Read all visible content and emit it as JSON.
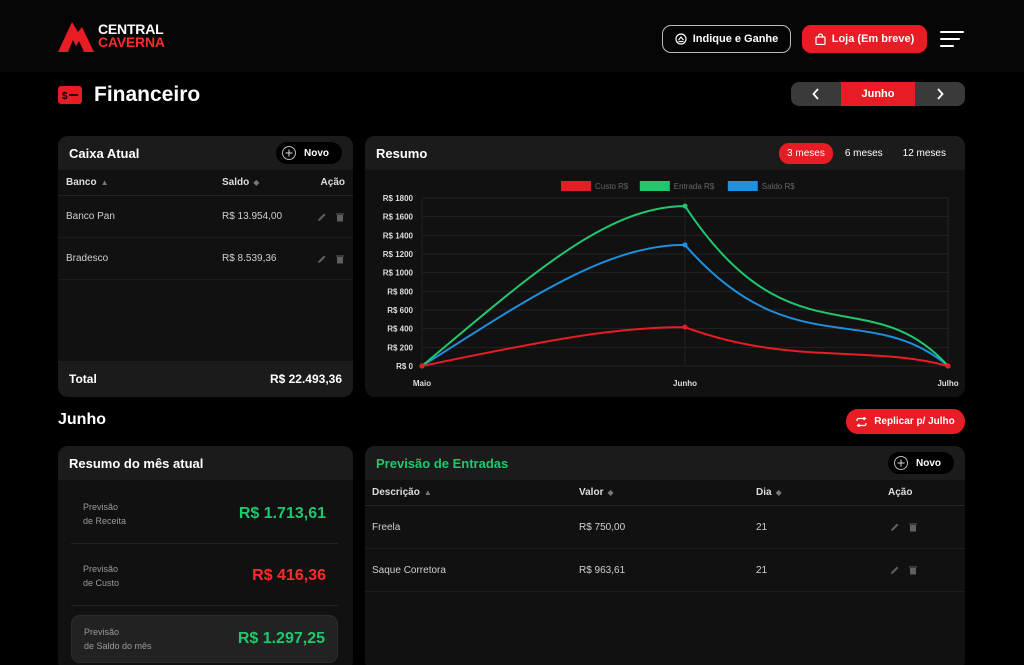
{
  "header": {
    "logo_line1": "CENTRAL",
    "logo_line2": "CAVERNA",
    "indique_label": "Indique e Ganhe",
    "loja_label": "Loja (Em breve)"
  },
  "page": {
    "title": "Financeiro",
    "month_current": "Junho"
  },
  "caixa": {
    "title": "Caixa Atual",
    "novo_label": "Novo",
    "columns": [
      "Banco",
      "Saldo",
      "Ação"
    ],
    "rows": [
      {
        "banco": "Banco Pan",
        "saldo": "R$ 13.954,00"
      },
      {
        "banco": "Bradesco",
        "saldo": "R$ 8.539,36"
      }
    ],
    "total_label": "Total",
    "total_value": "R$ 22.493,36"
  },
  "resumo": {
    "title": "Resumo",
    "tabs": [
      "3 meses",
      "6 meses",
      "12 meses"
    ],
    "active_tab": "3 meses"
  },
  "chart_data": {
    "type": "line",
    "categories": [
      "Maio",
      "Junho",
      "Julho"
    ],
    "series": [
      {
        "name": "Custo R$",
        "color": "#e81c24",
        "values": [
          0,
          416.36,
          0
        ]
      },
      {
        "name": "Entrada R$",
        "color": "#1fc86d",
        "values": [
          0,
          1713.61,
          0
        ]
      },
      {
        "name": "Saldo R$",
        "color": "#1e90e0",
        "values": [
          0,
          1297.25,
          0
        ]
      }
    ],
    "y_ticks": [
      "R$ 0",
      "R$ 200",
      "R$ 400",
      "R$ 600",
      "R$ 800",
      "R$ 1000",
      "R$ 1200",
      "R$ 1400",
      "R$ 1600",
      "R$ 1800"
    ],
    "ylim": [
      0,
      1800
    ],
    "legend_position": "top",
    "grid": true
  },
  "section": {
    "title": "Junho",
    "replicar_label": "Replicar p/ Julho"
  },
  "resumo_mes": {
    "title": "Resumo do mês atual",
    "items": [
      {
        "label1": "Previsão",
        "label2": "de Receita",
        "value": "R$ 1.713,61",
        "color": "#1fc86d"
      },
      {
        "label1": "Previsão",
        "label2": "de Custo",
        "value": "R$ 416,36",
        "color": "#ff2b2b"
      },
      {
        "label1": "Previsão",
        "label2": "de Saldo do mês",
        "value": "R$ 1.297,25",
        "color": "#1fc86d"
      }
    ]
  },
  "entradas": {
    "title": "Previsão de Entradas",
    "title_color": "#1fc86d",
    "novo_label": "Novo",
    "columns": [
      "Descrição",
      "Valor",
      "Dia",
      "Ação"
    ],
    "rows": [
      {
        "descricao": "Freela",
        "valor": "R$ 750,00",
        "dia": "21"
      },
      {
        "descricao": "Saque Corretora",
        "valor": "R$ 963,61",
        "dia": "21"
      }
    ]
  }
}
